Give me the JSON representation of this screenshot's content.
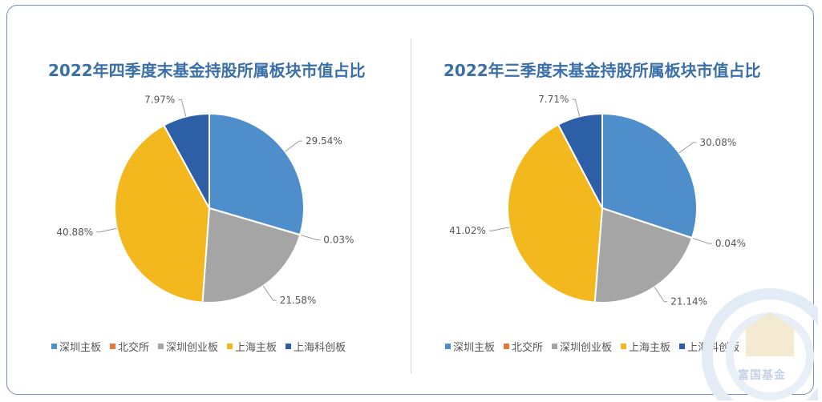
{
  "colors": {
    "frame": "#6d90c6",
    "title": "#3a6fa8",
    "series": [
      "#4e8ecb",
      "#e07b39",
      "#a5a5a5",
      "#f2b81e",
      "#2c5fa5"
    ]
  },
  "watermark": {
    "text": "富国基金",
    "icon": "fund-logo-icon"
  },
  "chart_data": [
    {
      "type": "pie",
      "title": "2022年四季度末基金持股所属板块市值占比",
      "categories": [
        "深圳主板",
        "北交所",
        "深圳创业板",
        "上海主板",
        "上海科创板"
      ],
      "values": [
        29.54,
        0.03,
        21.58,
        40.88,
        7.97
      ],
      "labels": [
        "29.54%",
        "0.03%",
        "21.58%",
        "40.88%",
        "7.97%"
      ],
      "legend_position": "bottom"
    },
    {
      "type": "pie",
      "title": "2022年三季度末基金持股所属板块市值占比",
      "categories": [
        "深圳主板",
        "北交所",
        "深圳创业板",
        "上海主板",
        "上海科创板"
      ],
      "values": [
        30.08,
        0.04,
        21.14,
        41.02,
        7.71
      ],
      "labels": [
        "30.08%",
        "0.04%",
        "21.14%",
        "41.02%",
        "7.71%"
      ],
      "legend_position": "bottom"
    }
  ]
}
